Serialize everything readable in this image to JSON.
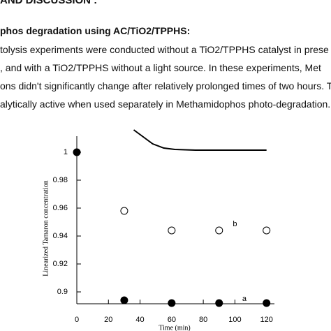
{
  "document": {
    "section_title": "AND DISCUSSION :",
    "subsection_title": "phos degradation using AC/TiO2/TPPHS:",
    "paragraph": [
      "tolysis experiments were conducted without a TiO2/TPPHS catalyst in prese",
      ", and with a TiO2/TPPHS without a light source. In these experiments, Met",
      "ons didn't significantly change after relatively prolonged times of two hours. TiO",
      "alytically active when used separately in Methamidophos photo-degradation."
    ]
  },
  "chart_data": {
    "type": "scatter",
    "x_label": "Time (min)",
    "y_label": "Linearized Tamaron concentration",
    "xlim": [
      0,
      125
    ],
    "xticks": [
      0,
      20,
      40,
      60,
      80,
      100,
      120
    ],
    "ylim": [
      0.8915,
      1.0115
    ],
    "yticks": [
      0.9,
      0.92,
      0.94,
      0.96,
      0.98,
      1
    ],
    "series": [
      {
        "name": "a",
        "color": "#000000",
        "marker": "filled",
        "x": [
          0,
          30,
          60,
          90,
          120
        ],
        "values": [
          1,
          0.894,
          0.892,
          0.892,
          0.892
        ]
      },
      {
        "name": "b",
        "color": "#000000",
        "marker": "open",
        "x": [
          30,
          60,
          90,
          120
        ],
        "values": [
          0.958,
          0.944,
          0.944,
          0.944
        ]
      }
    ],
    "curve": {
      "color": "#000000",
      "x": [
        36,
        42,
        48,
        55,
        62,
        75,
        120
      ],
      "values": [
        1.016,
        1.011,
        1.006,
        1.003,
        1.002,
        1.0015,
        1.0015
      ]
    },
    "annotations": [
      {
        "text": "a",
        "x": 106,
        "y": 0.895
      },
      {
        "text": "b",
        "x": 100,
        "y": 0.9485
      }
    ]
  }
}
